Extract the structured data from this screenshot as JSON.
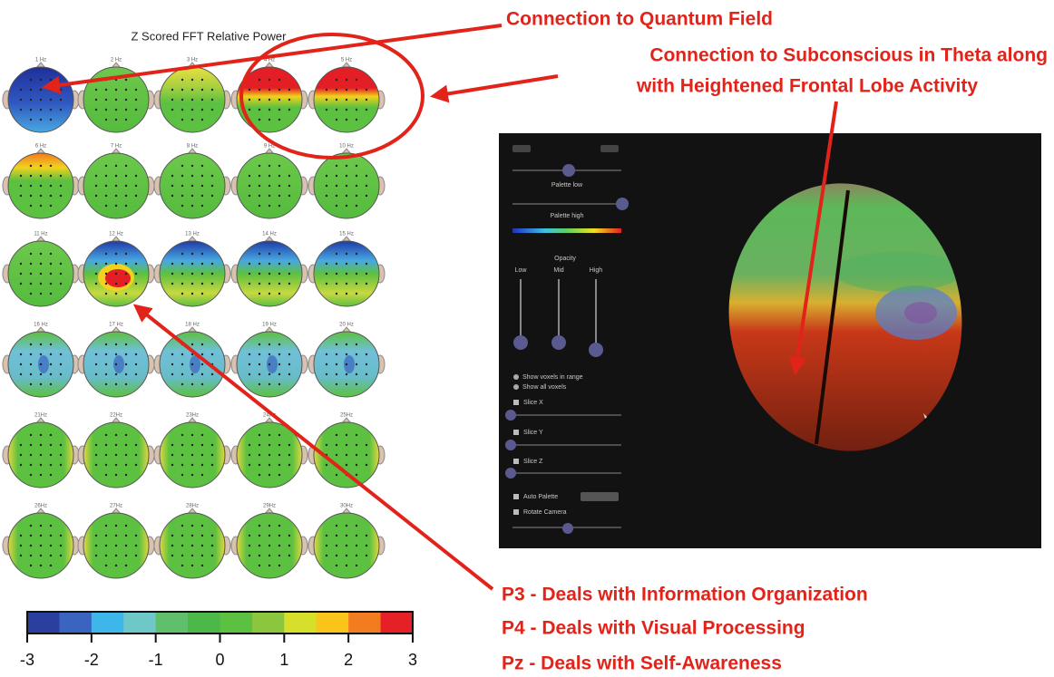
{
  "title": "Z Scored FFT Relative Power",
  "head_maps": [
    "1 Hz",
    "2 Hz",
    "3 Hz",
    "4 Hz",
    "5 Hz",
    "6 Hz",
    "7 Hz",
    "8 Hz",
    "9 Hz",
    "10 Hz",
    "11 Hz",
    "12 Hz",
    "13 Hz",
    "14 Hz",
    "15 Hz",
    "16 Hz",
    "17 Hz",
    "18 Hz",
    "19 Hz",
    "20 Hz",
    "21Hz",
    "22Hz",
    "23Hz",
    "24Hz",
    "25Hz",
    "26Hz",
    "27Hz",
    "28Hz",
    "29Hz",
    "30Hz"
  ],
  "colorbar": {
    "colors": [
      "#2a3f9e",
      "#3a64c0",
      "#3fb6ea",
      "#6ec8c8",
      "#5fbf6a",
      "#4cb848",
      "#5cc040",
      "#8cc63f",
      "#d6df2a",
      "#fbc41a",
      "#f47c20",
      "#e62027"
    ],
    "lim": [
      -3,
      3
    ],
    "ticks": [
      -3,
      -2,
      -1,
      0,
      1,
      2,
      3
    ]
  },
  "annotations": {
    "quantum": "Connection to Quantum Field",
    "theta_line1": "Connection to Subconscious in Theta along",
    "theta_line2": "with Heightened Frontal Lobe Activity",
    "p3": "P3 - Deals with Information Organization",
    "p4": "P4 - Deals with Visual Processing",
    "pz": "Pz - Deals with Self-Awareness"
  },
  "software_panel": {
    "palette_low": "Palette low",
    "palette_high": "Palette high",
    "opacity": "Opacity",
    "low": "Low",
    "mid": "Mid",
    "high": "High",
    "show_range": "Show voxels in range",
    "show_all": "Show all voxels",
    "slice_x": "Slice X",
    "slice_y": "Slice Y",
    "slice_z": "Slice Z",
    "auto_palette": "Auto Palette",
    "rotate_camera": "Rotate Camera"
  }
}
